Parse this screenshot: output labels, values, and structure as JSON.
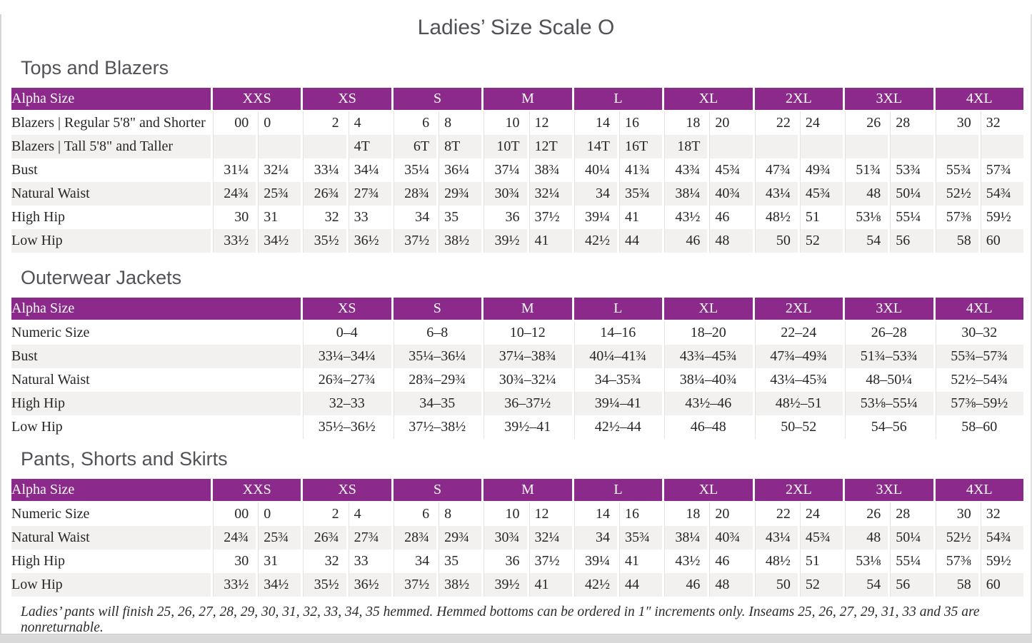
{
  "page": {
    "title": "Ladies’ Size Scale O",
    "footnote": "Ladies’ pants will finish 25, 26, 27, 28, 29, 30, 31, 32, 33, 34, 35 hemmed. Hemmed bottoms can be ordered in 1″ increments only. Inseams 25, 26, 27, 29, 31, 33 and 35 are nonreturnable."
  },
  "colors": {
    "header_purple": "#8b2a8a",
    "row_alt_gray": "#f2f1ef",
    "heading_gray": "#515257"
  },
  "tables": [
    {
      "heading": "Tops and Blazers",
      "label_header": "Alpha Size",
      "split_columns": true,
      "sizes": [
        "XXS",
        "XS",
        "S",
        "M",
        "L",
        "XL",
        "2XL",
        "3XL",
        "4XL"
      ],
      "rows": [
        {
          "label": "Blazers  |  Regular 5'8\" and Shorter",
          "values": [
            "00",
            "0",
            "2",
            "4",
            "6",
            "8",
            "10",
            "12",
            "14",
            "16",
            "18",
            "20",
            "22",
            "24",
            "26",
            "28",
            "30",
            "32"
          ]
        },
        {
          "label": "Blazers  |  Tall 5'8\" and Taller",
          "values": [
            "",
            "",
            "",
            "4T",
            "6T",
            "8T",
            "10T",
            "12T",
            "14T",
            "16T",
            "18T",
            "",
            "",
            "",
            "",
            "",
            "",
            ""
          ]
        },
        {
          "label": "Bust",
          "values": [
            "31¼",
            "32¼",
            "33¼",
            "34¼",
            "35¼",
            "36¼",
            "37¼",
            "38¾",
            "40¼",
            "41¾",
            "43¾",
            "45¾",
            "47¾",
            "49¾",
            "51¾",
            "53¾",
            "55¾",
            "57¾"
          ]
        },
        {
          "label": "Natural Waist",
          "values": [
            "24¾",
            "25¾",
            "26¾",
            "27¾",
            "28¾",
            "29¾",
            "30¾",
            "32¼",
            "34",
            "35¾",
            "38¼",
            "40¾",
            "43¼",
            "45¾",
            "48",
            "50¼",
            "52½",
            "54¾"
          ]
        },
        {
          "label": "High Hip",
          "values": [
            "30",
            "31",
            "32",
            "33",
            "34",
            "35",
            "36",
            "37½",
            "39¼",
            "41",
            "43½",
            "46",
            "48½",
            "51",
            "53⅛",
            "55¼",
            "57⅜",
            "59½"
          ]
        },
        {
          "label": "Low Hip",
          "values": [
            "33½",
            "34½",
            "35½",
            "36½",
            "37½",
            "38½",
            "39½",
            "41",
            "42½",
            "44",
            "46",
            "48",
            "50",
            "52",
            "54",
            "56",
            "58",
            "60"
          ]
        }
      ]
    },
    {
      "heading": "Outerwear Jackets",
      "label_header": "Alpha Size",
      "split_columns": false,
      "sizes": [
        "XS",
        "S",
        "M",
        "L",
        "XL",
        "2XL",
        "3XL",
        "4XL"
      ],
      "rows": [
        {
          "label": "Numeric Size",
          "values": [
            "0–4",
            "6–8",
            "10–12",
            "14–16",
            "18–20",
            "22–24",
            "26–28",
            "30–32"
          ]
        },
        {
          "label": "Bust",
          "values": [
            "33¼–34¼",
            "35¼–36¼",
            "37¼–38¾",
            "40¼–41¾",
            "43¾–45¾",
            "47¾–49¾",
            "51¾–53¾",
            "55¾–57¾"
          ]
        },
        {
          "label": "Natural Waist",
          "values": [
            "26¾–27¾",
            "28¾–29¾",
            "30¾–32¼",
            "34–35¾",
            "38¼–40¾",
            "43¼–45¾",
            "48–50¼",
            "52½–54¾"
          ]
        },
        {
          "label": "High Hip",
          "values": [
            "32–33",
            "34–35",
            "36–37½",
            "39¼–41",
            "43½–46",
            "48½–51",
            "53⅛–55¼",
            "57⅜–59½"
          ]
        },
        {
          "label": "Low Hip",
          "values": [
            "35½–36½",
            "37½–38½",
            "39½–41",
            "42½–44",
            "46–48",
            "50–52",
            "54–56",
            "58–60"
          ]
        }
      ]
    },
    {
      "heading": "Pants, Shorts and Skirts",
      "label_header": "Alpha Size",
      "split_columns": true,
      "sizes": [
        "XXS",
        "XS",
        "S",
        "M",
        "L",
        "XL",
        "2XL",
        "3XL",
        "4XL"
      ],
      "rows": [
        {
          "label": "Numeric Size",
          "values": [
            "00",
            "0",
            "2",
            "4",
            "6",
            "8",
            "10",
            "12",
            "14",
            "16",
            "18",
            "20",
            "22",
            "24",
            "26",
            "28",
            "30",
            "32"
          ]
        },
        {
          "label": "Natural Waist",
          "values": [
            "24¾",
            "25¾",
            "26¾",
            "27¾",
            "28¾",
            "29¾",
            "30¾",
            "32¼",
            "34",
            "35¾",
            "38¼",
            "40¾",
            "43¼",
            "45¾",
            "48",
            "50¼",
            "52½",
            "54¾"
          ]
        },
        {
          "label": "High Hip",
          "values": [
            "30",
            "31",
            "32",
            "33",
            "34",
            "35",
            "36",
            "37½",
            "39¼",
            "41",
            "43½",
            "46",
            "48½",
            "51",
            "53⅛",
            "55¼",
            "57⅜",
            "59½"
          ]
        },
        {
          "label": "Low Hip",
          "values": [
            "33½",
            "34½",
            "35½",
            "36½",
            "37½",
            "38½",
            "39½",
            "41",
            "42½",
            "44",
            "46",
            "48",
            "50",
            "52",
            "54",
            "56",
            "58",
            "60"
          ]
        }
      ]
    }
  ]
}
